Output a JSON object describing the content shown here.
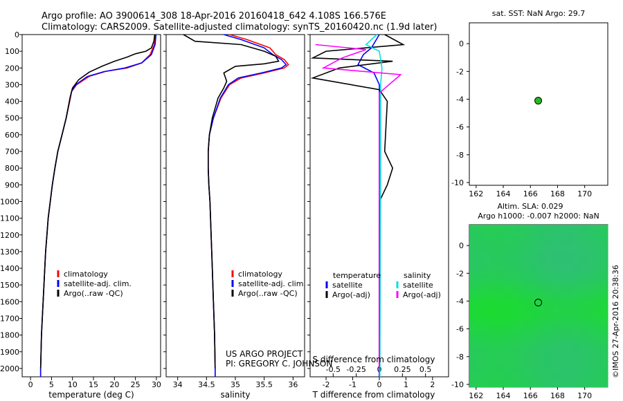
{
  "header": {
    "line1": "Argo profile: AO 3900614_308 18-Apr-2016 20160418_642 4.108S 166.576E",
    "line2": "Climatology: CARS2009. Satellite-adjusted climatology: synTS_20160420.nc (1.9d later)"
  },
  "colors": {
    "clim": "#ff0000",
    "sat": "#0000ff",
    "argo": "#000000",
    "sal_sat": "#00e0e0",
    "sal_argo": "#ff00ff",
    "dot": "#22bb22"
  },
  "chart_data": [
    {
      "type": "line",
      "id": "temperature",
      "xlabel": "temperature (deg C)",
      "ylabel": "",
      "xlim": [
        -2,
        31
      ],
      "ylim": [
        2050,
        0
      ],
      "xticks": [
        "0",
        "5",
        "10",
        "15",
        "20",
        "25",
        "30"
      ],
      "yticks": [
        "0",
        "100",
        "200",
        "300",
        "400",
        "500",
        "600",
        "700",
        "800",
        "900",
        "1000",
        "1100",
        "1200",
        "1300",
        "1400",
        "1500",
        "1600",
        "1700",
        "1800",
        "1900",
        "2000"
      ],
      "legend": [
        "climatology",
        "satellite-adj. clim.",
        "Argo(..raw -QC)"
      ],
      "series": [
        {
          "name": "climatology",
          "color": "clim",
          "points": [
            [
              29.8,
              0
            ],
            [
              29.5,
              60
            ],
            [
              28.5,
              120
            ],
            [
              26.5,
              170
            ],
            [
              23,
              200
            ],
            [
              18,
              220
            ],
            [
              14,
              250
            ],
            [
              11,
              300
            ],
            [
              9.8,
              340
            ],
            [
              9.5,
              380
            ],
            [
              8.5,
              500
            ],
            [
              7.5,
              600
            ],
            [
              6.5,
              700
            ],
            [
              5.8,
              800
            ],
            [
              5.2,
              900
            ],
            [
              4.7,
              1000
            ],
            [
              4.2,
              1100
            ],
            [
              3.9,
              1200
            ],
            [
              3.6,
              1300
            ],
            [
              3.4,
              1400
            ],
            [
              3.2,
              1500
            ],
            [
              3.0,
              1600
            ],
            [
              2.8,
              1700
            ],
            [
              2.6,
              1800
            ],
            [
              2.5,
              1900
            ],
            [
              2.4,
              2000
            ],
            [
              2.4,
              2050
            ]
          ]
        },
        {
          "name": "satellite-adj. clim.",
          "color": "sat",
          "points": [
            [
              29.9,
              0
            ],
            [
              29.7,
              60
            ],
            [
              28.8,
              120
            ],
            [
              26.5,
              170
            ],
            [
              22.5,
              200
            ],
            [
              17.5,
              222
            ],
            [
              13.5,
              252
            ],
            [
              10.8,
              300
            ],
            [
              9.8,
              340
            ],
            [
              9.4,
              380
            ],
            [
              8.5,
              500
            ],
            [
              7.5,
              600
            ],
            [
              6.5,
              700
            ],
            [
              5.8,
              800
            ],
            [
              5.2,
              900
            ],
            [
              4.7,
              1000
            ],
            [
              4.2,
              1100
            ],
            [
              3.9,
              1200
            ],
            [
              3.6,
              1300
            ],
            [
              3.4,
              1400
            ],
            [
              3.2,
              1500
            ],
            [
              3.0,
              1600
            ],
            [
              2.8,
              1700
            ],
            [
              2.6,
              1800
            ],
            [
              2.5,
              1900
            ],
            [
              2.4,
              2000
            ],
            [
              2.4,
              2050
            ]
          ]
        },
        {
          "name": "Argo(..raw -QC)",
          "color": "argo",
          "points": [
            [
              29.6,
              0
            ],
            [
              29.4,
              40
            ],
            [
              28.8,
              80
            ],
            [
              27.5,
              100
            ],
            [
              25,
              115
            ],
            [
              23,
              135
            ],
            [
              20,
              160
            ],
            [
              17,
              190
            ],
            [
              14,
              225
            ],
            [
              11.5,
              270
            ],
            [
              10,
              320
            ],
            [
              9.5,
              370
            ],
            [
              8.5,
              500
            ],
            [
              7.5,
              600
            ],
            [
              6.5,
              700
            ],
            [
              5.8,
              800
            ],
            [
              5.2,
              900
            ],
            [
              4.7,
              1000
            ],
            [
              4.2,
              1100
            ],
            [
              3.9,
              1200
            ],
            [
              3.6,
              1300
            ],
            [
              3.4,
              1400
            ],
            [
              3.2,
              1500
            ],
            [
              3.0,
              1600
            ],
            [
              2.8,
              1700
            ],
            [
              2.6,
              1800
            ],
            [
              2.5,
              1900
            ],
            [
              2.4,
              2000
            ]
          ]
        }
      ]
    },
    {
      "type": "line",
      "id": "salinity",
      "xlabel": "salinity",
      "xlim": [
        33.8,
        36.2
      ],
      "ylim": [
        2050,
        0
      ],
      "xticks": [
        "34",
        "34.5",
        "35",
        "35.5",
        "36"
      ],
      "legend": [
        "climatology",
        "satellite-adj. clim.",
        "Argo(..raw -QC)"
      ],
      "annotation": [
        "US ARGO PROJECT",
        "PI: GREGORY C. JOHNSON"
      ],
      "series": [
        {
          "name": "climatology",
          "color": "clim",
          "points": [
            [
              34.9,
              0
            ],
            [
              35.2,
              30
            ],
            [
              35.6,
              80
            ],
            [
              35.7,
              120
            ],
            [
              35.85,
              150
            ],
            [
              35.92,
              180
            ],
            [
              35.85,
              200
            ],
            [
              35.5,
              230
            ],
            [
              35.1,
              260
            ],
            [
              34.9,
              300
            ],
            [
              34.75,
              380
            ],
            [
              34.62,
              500
            ],
            [
              34.55,
              600
            ],
            [
              34.53,
              700
            ],
            [
              34.53,
              800
            ],
            [
              34.54,
              900
            ],
            [
              34.56,
              1000
            ],
            [
              34.58,
              1200
            ],
            [
              34.6,
              1400
            ],
            [
              34.62,
              1600
            ],
            [
              34.64,
              1800
            ],
            [
              34.65,
              2000
            ],
            [
              34.65,
              2050
            ]
          ]
        },
        {
          "name": "satellite-adj. clim.",
          "color": "sat",
          "points": [
            [
              34.8,
              0
            ],
            [
              35.1,
              30
            ],
            [
              35.5,
              80
            ],
            [
              35.65,
              120
            ],
            [
              35.8,
              150
            ],
            [
              35.88,
              180
            ],
            [
              35.8,
              200
            ],
            [
              35.45,
              230
            ],
            [
              35.05,
              260
            ],
            [
              34.88,
              300
            ],
            [
              34.74,
              380
            ],
            [
              34.62,
              500
            ],
            [
              34.55,
              600
            ],
            [
              34.53,
              700
            ],
            [
              34.53,
              800
            ],
            [
              34.54,
              900
            ],
            [
              34.56,
              1000
            ],
            [
              34.58,
              1200
            ],
            [
              34.6,
              1400
            ],
            [
              34.62,
              1600
            ],
            [
              34.64,
              1800
            ],
            [
              34.65,
              2000
            ],
            [
              34.65,
              2050
            ]
          ]
        },
        {
          "name": "Argo(..raw -QC)",
          "color": "argo",
          "points": [
            [
              34.1,
              0
            ],
            [
              34.3,
              40
            ],
            [
              35.1,
              60
            ],
            [
              35.5,
              100
            ],
            [
              35.7,
              130
            ],
            [
              35.75,
              160
            ],
            [
              35.5,
              175
            ],
            [
              35.0,
              190
            ],
            [
              34.8,
              230
            ],
            [
              34.85,
              280
            ],
            [
              34.8,
              320
            ],
            [
              34.7,
              380
            ],
            [
              34.6,
              500
            ],
            [
              34.55,
              600
            ],
            [
              34.53,
              700
            ],
            [
              34.53,
              800
            ],
            [
              34.54,
              900
            ],
            [
              34.56,
              1000
            ],
            [
              34.58,
              1200
            ],
            [
              34.6,
              1400
            ],
            [
              34.62,
              1600
            ],
            [
              34.64,
              1800
            ],
            [
              34.65,
              2000
            ]
          ]
        }
      ]
    },
    {
      "type": "line",
      "id": "difference",
      "xlabel": "T difference from climatology",
      "xlabel_top": "S difference from climatology",
      "xlim": [
        -2.6,
        2.6
      ],
      "ylim": [
        2050,
        0
      ],
      "xticks": [
        "-2",
        "-1",
        "0",
        "1",
        "2"
      ],
      "xticks_top": [
        "-0.5",
        "-0.25",
        "0",
        "0.25",
        "0.5"
      ],
      "legend_left": [
        "temperature",
        "satellite",
        "Argo(-adj)"
      ],
      "legend_right": [
        "salinity",
        "satellite",
        "Argo(-adj)"
      ],
      "series": [
        {
          "name": "T satellite",
          "color": "sat",
          "points": [
            [
              0,
              0
            ],
            [
              -0.3,
              80
            ],
            [
              -0.6,
              120
            ],
            [
              -0.8,
              180
            ],
            [
              -0.2,
              230
            ],
            [
              0,
              300
            ],
            [
              0,
              2050
            ]
          ]
        },
        {
          "name": "T Argo(-adj)",
          "color": "argo",
          "points": [
            [
              0.2,
              0
            ],
            [
              0.9,
              60
            ],
            [
              -2.0,
              100
            ],
            [
              -2.5,
              140
            ],
            [
              0.5,
              160
            ],
            [
              -1.5,
              200
            ],
            [
              -2.5,
              260
            ],
            [
              0,
              330
            ],
            [
              0.3,
              400
            ],
            [
              0.2,
              700
            ],
            [
              0.5,
              800
            ],
            [
              0.3,
              900
            ],
            [
              0,
              1000
            ],
            [
              0,
              2000
            ]
          ]
        },
        {
          "name": "S satellite",
          "color": "sal_sat",
          "points": [
            [
              -0.1,
              0
            ],
            [
              -0.5,
              60
            ],
            [
              0,
              100
            ],
            [
              0.1,
              200
            ],
            [
              0.05,
              300
            ],
            [
              0.05,
              700
            ],
            [
              0.02,
              2050
            ]
          ]
        },
        {
          "name": "S Argo(-adj)",
          "color": "sal_argo",
          "points": [
            [
              -2.4,
              60
            ],
            [
              -0.5,
              90
            ],
            [
              -1.4,
              140
            ],
            [
              -2.1,
              200
            ],
            [
              0.8,
              240
            ],
            [
              0,
              350
            ],
            [
              0,
              2000
            ]
          ]
        }
      ]
    },
    {
      "type": "scatter",
      "id": "sst-map",
      "title": "sat. SST: NaN Argo: 29.7",
      "xlim": [
        161.5,
        171.7
      ],
      "ylim": [
        -10.2,
        1.5
      ],
      "xticks": [
        "162",
        "164",
        "166",
        "168",
        "170"
      ],
      "yticks": [
        "0",
        "-2",
        "-4",
        "-6",
        "-8",
        "-10"
      ],
      "points": [
        [
          166.576,
          -4.108
        ]
      ]
    },
    {
      "type": "heatmap",
      "id": "sla-map",
      "title_line1": "Altim. SLA: 0.029",
      "title_line2": "Argo h1000: -0.007 h2000: NaN",
      "xlim": [
        161.5,
        171.7
      ],
      "ylim": [
        -10.2,
        1.5
      ],
      "xticks": [
        "162",
        "164",
        "166",
        "168",
        "170"
      ],
      "yticks": [
        "0",
        "-2",
        "-4",
        "-6",
        "-8",
        "-10"
      ],
      "points": [
        [
          166.576,
          -4.108
        ]
      ]
    }
  ],
  "credit": "©IMOS 27-Apr-2016 20:38:36"
}
